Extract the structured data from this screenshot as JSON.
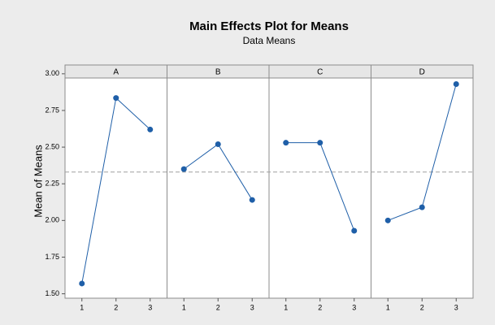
{
  "chart_data": {
    "type": "line",
    "title": "Main Effects Plot for Means",
    "subtitle": "Data Means",
    "ylabel": "Mean of Means",
    "categories": [
      "1",
      "2",
      "3"
    ],
    "panels": [
      {
        "name": "A",
        "values": [
          1.57,
          2.835,
          2.62
        ]
      },
      {
        "name": "B",
        "values": [
          2.35,
          2.52,
          2.14
        ]
      },
      {
        "name": "C",
        "values": [
          2.53,
          2.53,
          1.93
        ]
      },
      {
        "name": "D",
        "values": [
          2.0,
          2.09,
          2.93
        ]
      }
    ],
    "reference_line": 2.33,
    "color": "#1f5fa8",
    "ylim": [
      1.47,
      3.06
    ],
    "yticks": [
      {
        "value": 1.5,
        "label": "1.50"
      },
      {
        "value": 1.75,
        "label": "1.75"
      },
      {
        "value": 2.0,
        "label": "2.00"
      },
      {
        "value": 2.25,
        "label": "2.25"
      },
      {
        "value": 2.5,
        "label": "2.50"
      },
      {
        "value": 2.75,
        "label": "2.75"
      },
      {
        "value": 3.0,
        "label": "3.00"
      }
    ]
  }
}
